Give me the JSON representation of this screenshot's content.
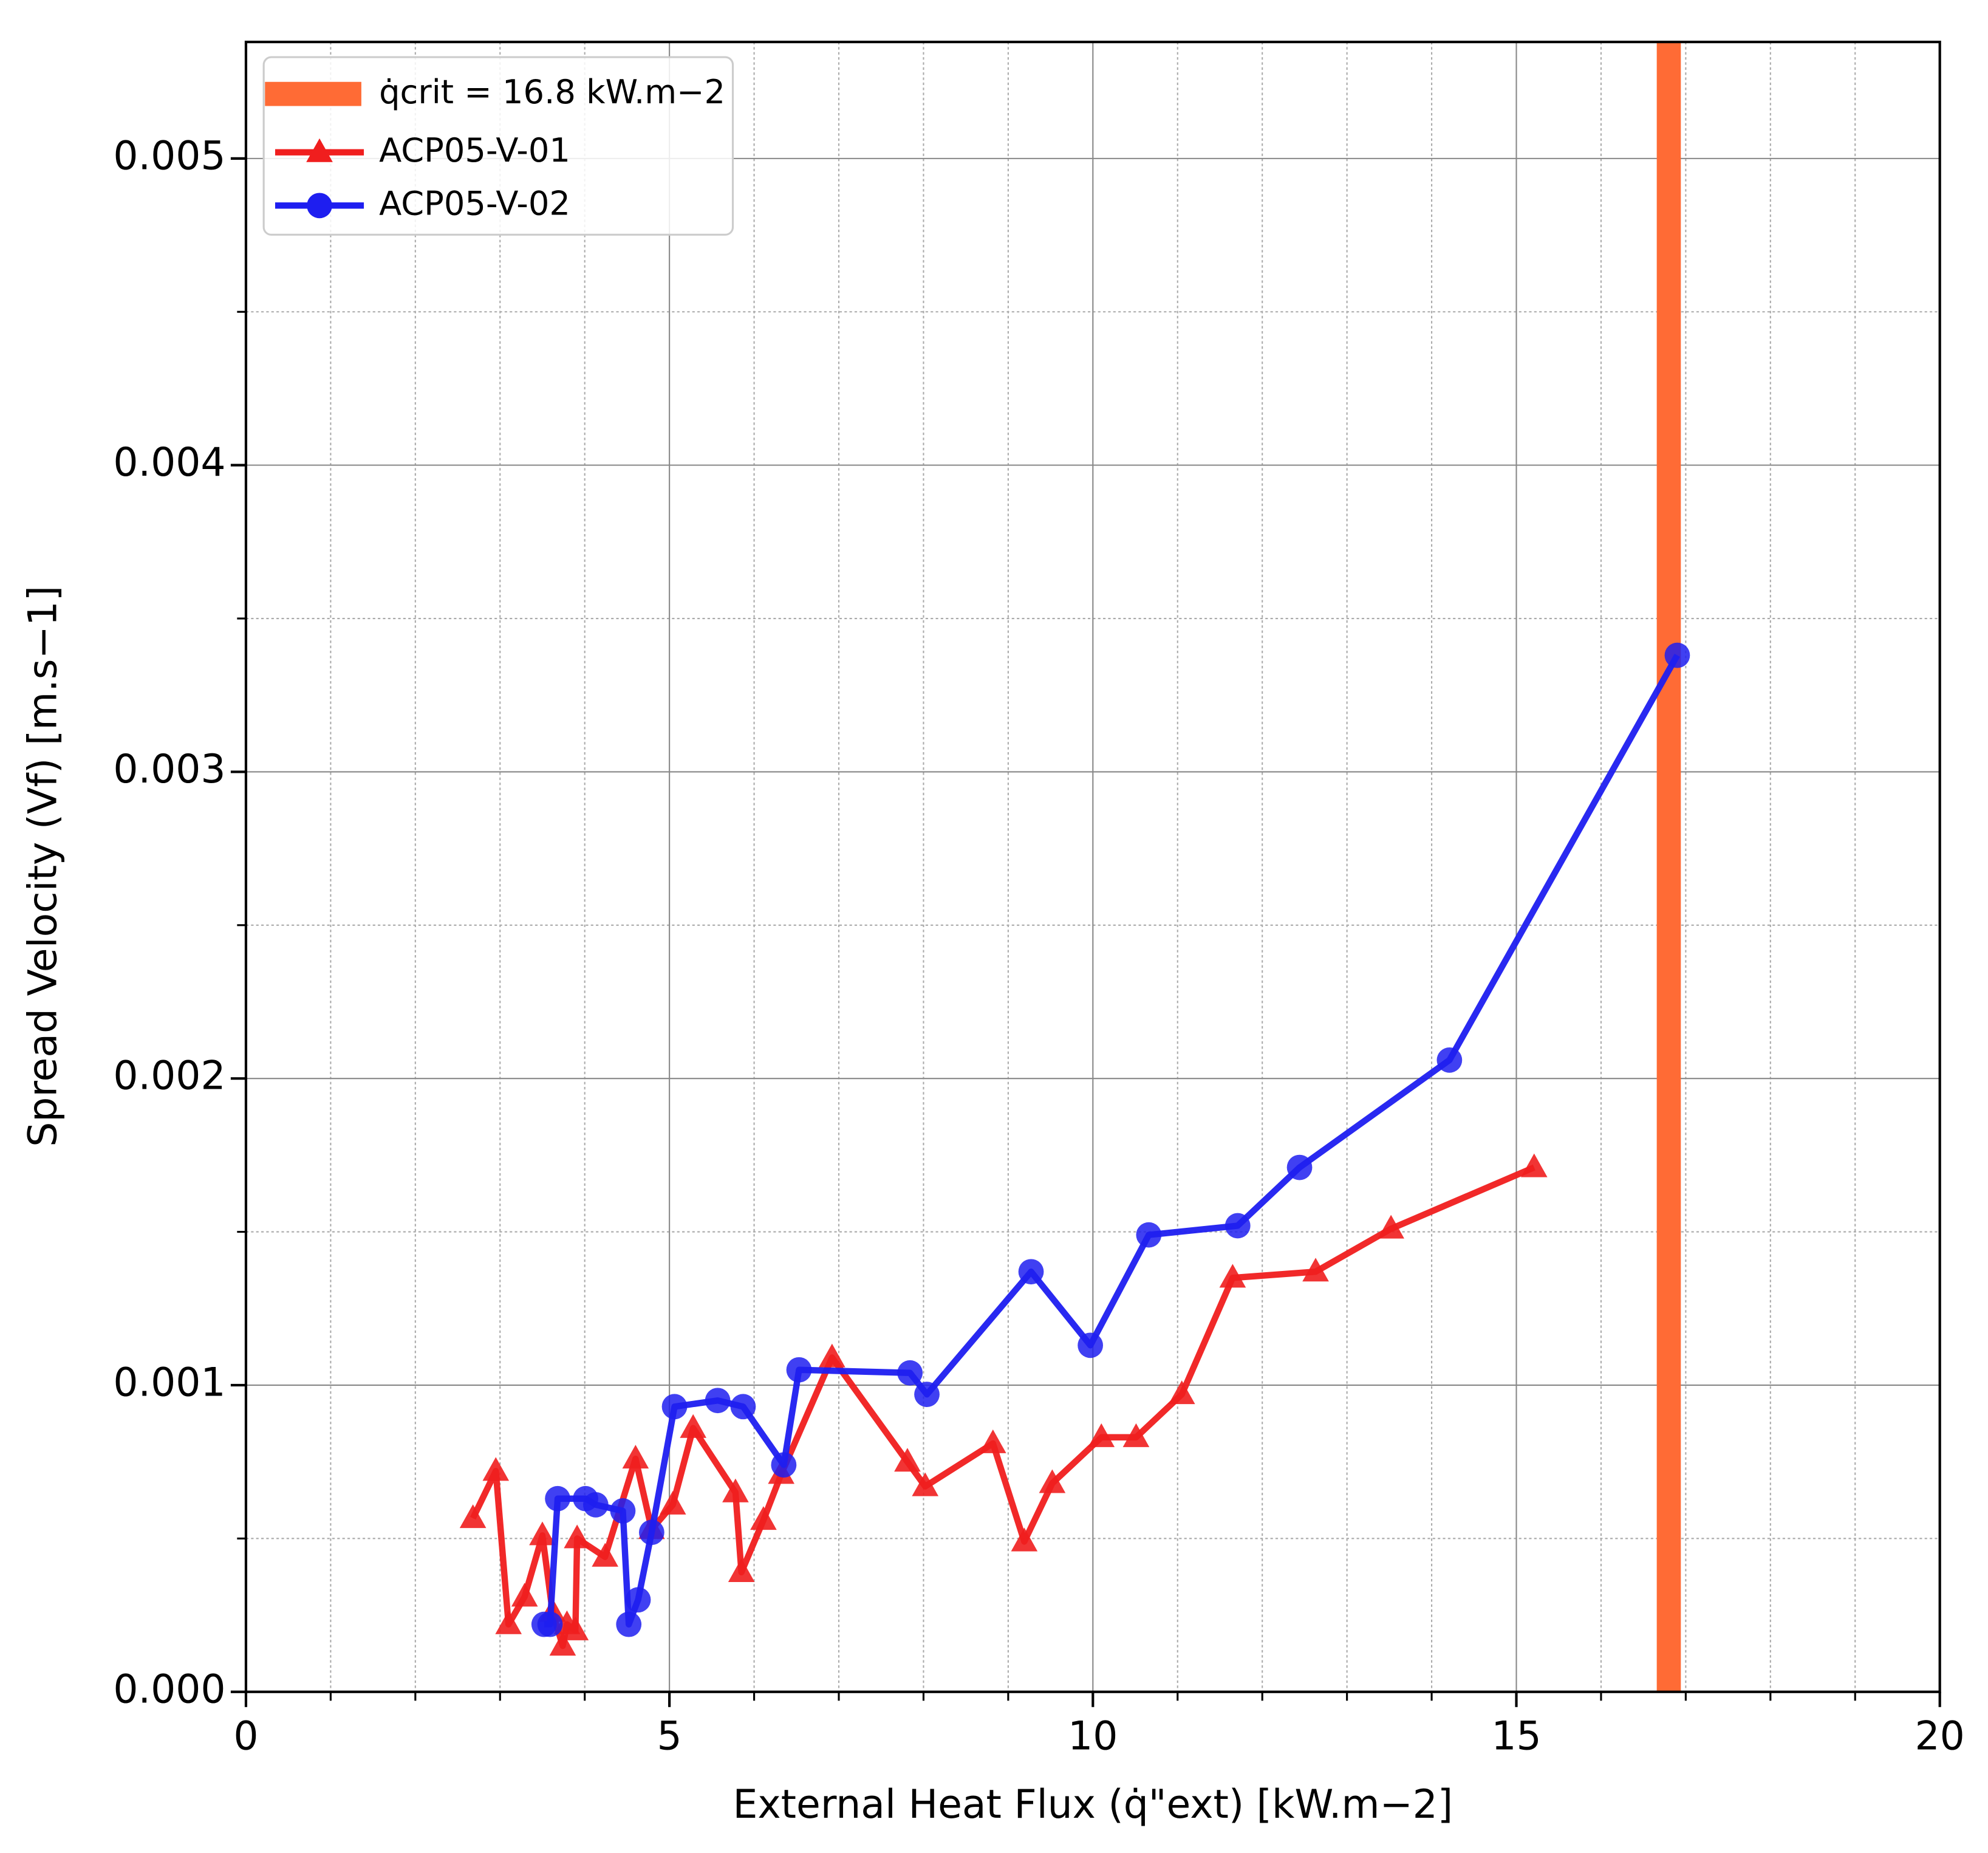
{
  "chart_data": {
    "type": "line",
    "xlabel": "External Heat Flux (q̇\"ext) [kW.m−2]",
    "ylabel": "Spread Velocity (Vf) [m.s−1]",
    "xlim": [
      0,
      20
    ],
    "ylim": [
      0,
      0.00538
    ],
    "xticks": [
      0,
      5,
      10,
      15,
      20
    ],
    "yticks": [
      {
        "value": 0,
        "label": "0.000"
      },
      {
        "value": 0.001,
        "label": "0.001"
      },
      {
        "value": 0.002,
        "label": "0.002"
      },
      {
        "value": 0.003,
        "label": "0.003"
      },
      {
        "value": 0.004,
        "label": "0.004"
      },
      {
        "value": 0.005,
        "label": "0.005"
      }
    ],
    "xminorticks": [
      1,
      2,
      3,
      4,
      6,
      7,
      8,
      9,
      11,
      12,
      13,
      14,
      16,
      17,
      18,
      19
    ],
    "yminorticks": [
      0.0005,
      0.0015,
      0.0025,
      0.0035,
      0.0045
    ],
    "grid": true,
    "legend": "upper left",
    "vline": {
      "name": "q̇crit = 16.8 kW.m−2",
      "x": 16.8,
      "color": "#ff6b35"
    },
    "series": [
      {
        "name": "ACP05-V-01",
        "color": "#f01e1e",
        "marker": "triangle",
        "x": [
          2.68,
          2.95,
          3.1,
          3.29,
          3.5,
          3.62,
          3.74,
          3.79,
          3.89,
          3.91,
          4.24,
          4.6,
          4.79,
          5.04,
          5.28,
          5.78,
          5.85,
          6.11,
          6.32,
          6.92,
          7.81,
          8.02,
          8.82,
          9.19,
          9.52,
          10.1,
          10.51,
          11.05,
          11.65,
          12.63,
          13.52,
          15.21
        ],
        "values": [
          0.000566,
          0.00072,
          0.00022,
          0.00031,
          0.00051,
          0.00026,
          0.00015,
          0.00022,
          0.0002,
          0.0005,
          0.00044,
          0.00076,
          0.00053,
          0.00061,
          0.00086,
          0.00065,
          0.00039,
          0.00056,
          0.00071,
          0.00109,
          0.00075,
          0.00067,
          0.00081,
          0.00049,
          0.00068,
          0.00083,
          0.00083,
          0.00097,
          0.00135,
          0.00137,
          0.00151,
          0.00171
        ]
      },
      {
        "name": "ACP05-V-02",
        "color": "#1e1ef0",
        "marker": "circle",
        "x": [
          3.52,
          3.59,
          3.68,
          4.01,
          4.13,
          4.45,
          4.52,
          4.63,
          4.79,
          5.06,
          5.57,
          5.87,
          6.35,
          6.53,
          7.84,
          8.04,
          9.27,
          9.97,
          10.66,
          11.71,
          12.44,
          14.21,
          16.9
        ],
        "values": [
          0.00022,
          0.00022,
          0.00063,
          0.00063,
          0.00061,
          0.00059,
          0.00022,
          0.0003,
          0.00052,
          0.00093,
          0.00095,
          0.00093,
          0.00074,
          0.00105,
          0.00104,
          0.00097,
          0.00137,
          0.00113,
          0.00149,
          0.00152,
          0.00171,
          0.00206,
          0.00338
        ]
      }
    ]
  }
}
